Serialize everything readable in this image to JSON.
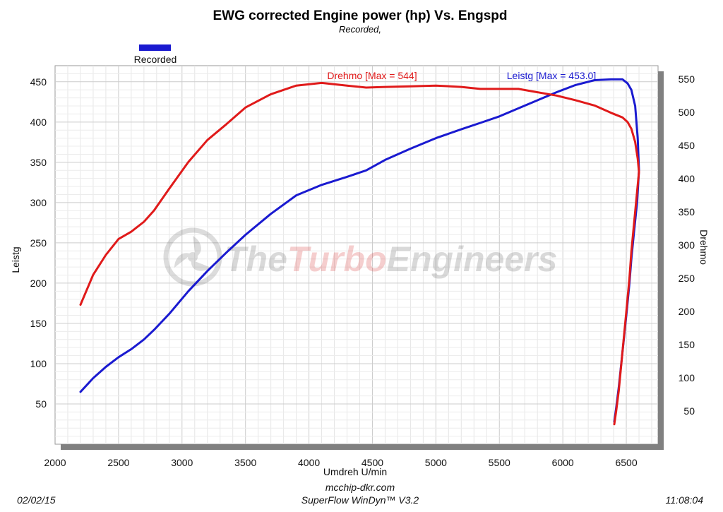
{
  "colors": {
    "leistg": "#1a1ad0",
    "drehmo": "#e01a1a",
    "grid": "#d9d9d9",
    "frame": "#808080"
  },
  "header": {
    "title": "EWG corrected Engine power (hp) Vs. Engspd",
    "subtitle": "Recorded,"
  },
  "legend": {
    "label": "Recorded"
  },
  "watermark": {
    "part1": "The",
    "part2": "Turbo",
    "part3": "Engineers"
  },
  "footer": {
    "date": "02/02/15",
    "site": "mcchip-dkr.com",
    "software": "SuperFlow WinDyn™ V3.2",
    "time": "11:08:04"
  },
  "chart_data": {
    "type": "line",
    "xlabel": "Umdreh U/min",
    "ylabel_left": "Leistg",
    "ylabel_right": "Drehmo",
    "xlim": [
      2000,
      6750
    ],
    "ylim_left": [
      0,
      470
    ],
    "ylim_right": [
      0,
      570
    ],
    "xticks": [
      2000,
      2500,
      3000,
      3500,
      4000,
      4500,
      5000,
      5500,
      6000,
      6500
    ],
    "yticks_left": [
      50,
      100,
      150,
      200,
      250,
      300,
      350,
      400,
      450
    ],
    "yticks_right": [
      50,
      100,
      150,
      200,
      250,
      300,
      350,
      400,
      450,
      500,
      550
    ],
    "grid": true,
    "annotations": {
      "drehmo": "Drehmo [Max = 544]",
      "leistg": "Leistg [Max = 453.0]"
    },
    "series": [
      {
        "name": "Leistg",
        "axis": "left",
        "x": [
          2200,
          2300,
          2400,
          2500,
          2600,
          2700,
          2780,
          2900,
          3050,
          3200,
          3350,
          3500,
          3700,
          3900,
          4100,
          4300,
          4450,
          4600,
          4800,
          5000,
          5200,
          5350,
          5500,
          5650,
          5800,
          5950,
          6100,
          6250,
          6380,
          6470,
          6510,
          6540,
          6570,
          6590,
          6600,
          6585,
          6560,
          6540,
          6525,
          6505,
          6480,
          6460,
          6440,
          6420,
          6405
        ],
        "y": [
          65,
          82,
          96,
          108,
          118,
          130,
          142,
          162,
          190,
          215,
          238,
          260,
          286,
          309,
          322,
          332,
          340,
          353,
          367,
          380,
          391,
          399,
          407,
          417,
          427,
          437,
          446,
          452,
          453,
          453,
          448,
          440,
          420,
          380,
          340,
          300,
          262,
          230,
          200,
          168,
          130,
          100,
          70,
          45,
          28
        ]
      },
      {
        "name": "Drehmo",
        "axis": "right",
        "x": [
          2200,
          2300,
          2400,
          2500,
          2600,
          2700,
          2780,
          2900,
          3050,
          3200,
          3350,
          3500,
          3700,
          3900,
          4100,
          4300,
          4450,
          4600,
          4800,
          5000,
          5200,
          5350,
          5500,
          5650,
          5800,
          5950,
          6100,
          6250,
          6380,
          6470,
          6510,
          6540,
          6570,
          6590,
          6600,
          6585,
          6560,
          6540,
          6525,
          6505,
          6480,
          6460,
          6440,
          6420,
          6405
        ],
        "y": [
          210,
          255,
          285,
          309,
          320,
          335,
          352,
          385,
          425,
          458,
          482,
          507,
          527,
          540,
          544,
          540,
          537,
          538,
          539,
          540,
          538,
          535,
          535,
          535,
          530,
          525,
          518,
          510,
          499,
          492,
          485,
          475,
          455,
          430,
          410,
          380,
          330,
          290,
          250,
          210,
          160,
          120,
          80,
          50,
          30
        ]
      }
    ]
  }
}
